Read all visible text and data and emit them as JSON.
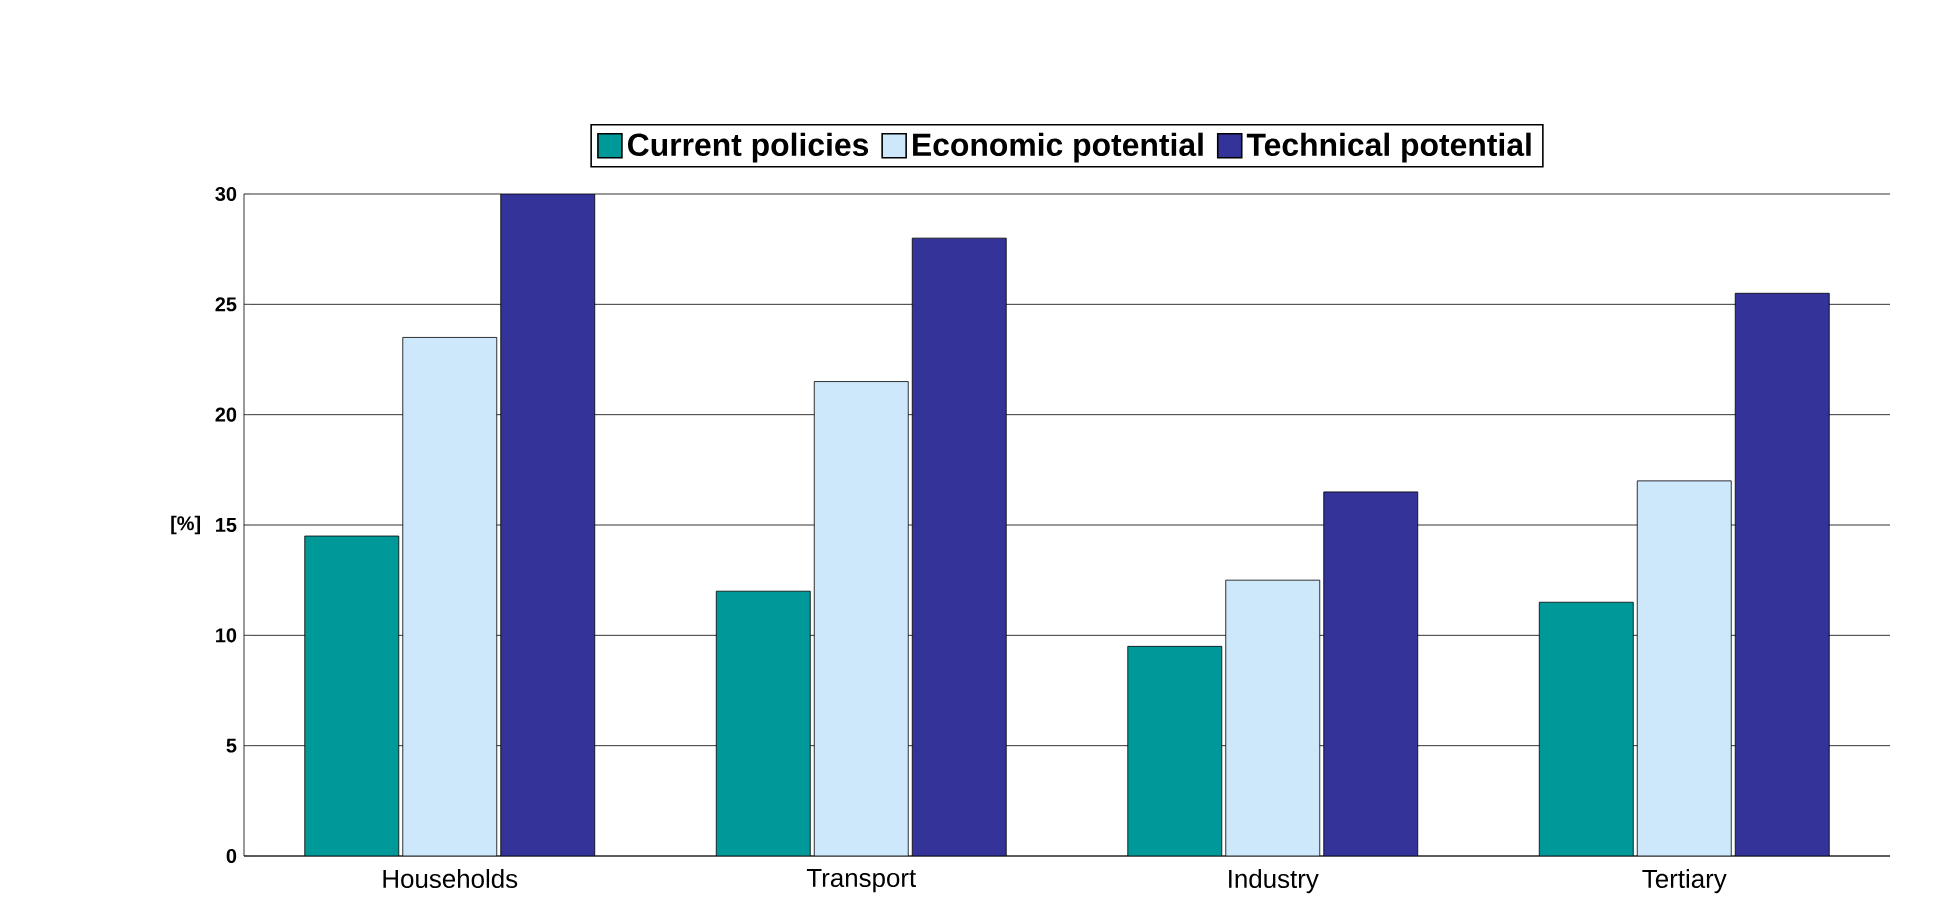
{
  "chart_data": {
    "type": "bar",
    "ylabel": "[%]",
    "categories": [
      "Households",
      "Transport",
      "Industry",
      "Tertiary"
    ],
    "series": [
      {
        "name": "Current policies",
        "color": "#009999",
        "values": [
          14.5,
          12,
          9.5,
          11.5
        ]
      },
      {
        "name": "Economic potential",
        "color": "#cce8fa",
        "values": [
          23.5,
          21.5,
          12.5,
          17
        ]
      },
      {
        "name": "Technical potential",
        "color": "#333399",
        "values": [
          30,
          28,
          16.5,
          25.5
        ]
      }
    ],
    "ylim": [
      0,
      30
    ],
    "yticks": [
      0,
      5,
      10,
      15,
      20,
      25,
      30
    ],
    "grid": "y",
    "legend": "top"
  }
}
